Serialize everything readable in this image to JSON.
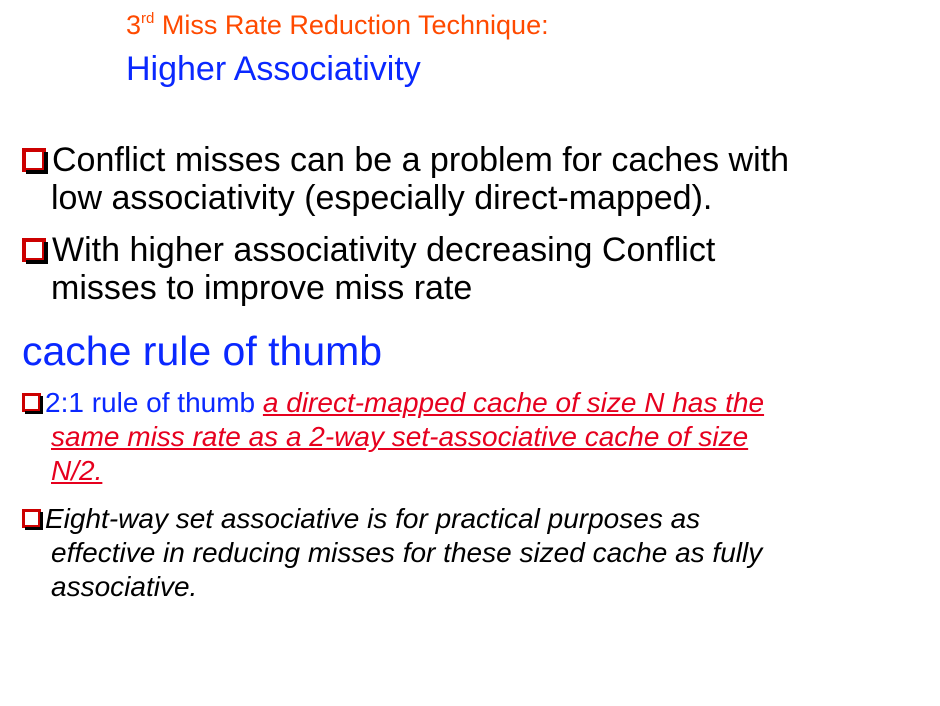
{
  "colors": {
    "accent_orange": "#ff4a00",
    "accent_blue": "#0a28ff",
    "accent_red": "#e6001e",
    "bullet_red": "#cc0000",
    "text_black": "#000000"
  },
  "title": {
    "ordinal_number": "3",
    "ordinal_suffix": "rd",
    "line1_rest": " Miss Rate Reduction Technique:",
    "line2": "Higher Associativity"
  },
  "bullets_main": [
    {
      "icon": "checkbox-bullet-icon",
      "lines": [
        "Conflict misses can be a problem for caches with",
        "low associativity (especially direct-mapped)."
      ]
    },
    {
      "icon": "checkbox-bullet-icon",
      "lines": [
        "With higher associativity decreasing Conflict",
        "misses to improve miss rate"
      ]
    }
  ],
  "section_heading": "cache rule of thumb",
  "rule_bullet": {
    "prefix": "2:1 rule of thumb ",
    "line1_emph": "a direct-mapped cache of size N has the",
    "line2_emph": "same miss rate as a 2-way set-associative cache of size",
    "line3_emph": "N/2."
  },
  "eight_way_bullet": {
    "lines": [
      "Eight-way set associative is for practical purposes as",
      "effective in reducing misses for these sized cache as fully",
      "associative."
    ]
  }
}
